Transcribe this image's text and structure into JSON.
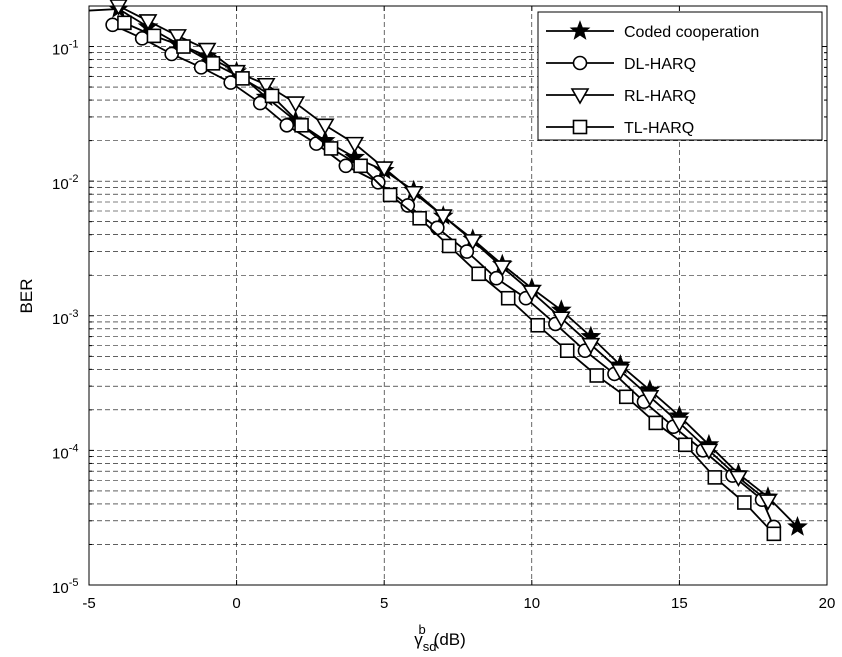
{
  "chart_data": {
    "type": "line",
    "xlabel": "γ_sd^b(dB)",
    "xlabel_parts": {
      "symbol": "γ",
      "sup": "b",
      "sub": "sd",
      "unit": "(dB)"
    },
    "ylabel": "BER",
    "xlim": [
      -5,
      20
    ],
    "ylim": [
      1e-05,
      0.2
    ],
    "yscale": "log",
    "grid": true,
    "grid_style": "dashed",
    "legend_position": "top-right",
    "x_ticks": [
      "-5",
      "0",
      "5",
      "10",
      "15",
      "20"
    ],
    "y_ticks": [
      {
        "base": "10",
        "exp": "-5"
      },
      {
        "base": "10",
        "exp": "-4"
      },
      {
        "base": "10",
        "exp": "-3"
      },
      {
        "base": "10",
        "exp": "-2"
      },
      {
        "base": "10",
        "exp": "-1"
      }
    ],
    "series": [
      {
        "name": "Coded cooperation",
        "marker": "star",
        "x": [
          -4.0,
          -3.0,
          -2.0,
          -1.0,
          0.0,
          1.0,
          2.0,
          3.0,
          4.0,
          5.0,
          6.0,
          7.0,
          8.0,
          9.0,
          10.0,
          11.0,
          12.0,
          13.0,
          14.0,
          15.0,
          16.0,
          17.0,
          18.0,
          19.0
        ],
        "y": [
          0.19,
          0.14,
          0.105,
          0.085,
          0.065,
          0.042,
          0.028,
          0.02,
          0.015,
          0.012,
          0.0085,
          0.0055,
          0.0037,
          0.0024,
          0.0016,
          0.0011,
          0.0007,
          0.00043,
          0.00028,
          0.00018,
          0.00011,
          6.7e-05,
          4.5e-05,
          2.7e-05
        ]
      },
      {
        "name": "DL-HARQ",
        "marker": "circle",
        "x": [
          -4.2,
          -3.2,
          -2.2,
          -1.2,
          -0.2,
          0.8,
          1.7,
          2.7,
          3.7,
          4.8,
          5.8,
          6.8,
          7.8,
          8.8,
          9.8,
          10.8,
          11.8,
          12.8,
          13.8,
          14.8,
          15.8,
          16.8,
          17.8,
          18.2
        ],
        "y": [
          0.145,
          0.115,
          0.088,
          0.07,
          0.054,
          0.038,
          0.026,
          0.019,
          0.013,
          0.0098,
          0.0066,
          0.0045,
          0.003,
          0.0019,
          0.00135,
          0.00087,
          0.00055,
          0.00037,
          0.00023,
          0.00015,
          0.0001,
          6.5e-05,
          4.3e-05,
          2.7e-05
        ]
      },
      {
        "name": "RL-HARQ",
        "marker": "triangle-down",
        "x": [
          -4.0,
          -3.0,
          -2.0,
          -1.0,
          0.0,
          1.0,
          2.0,
          3.0,
          4.0,
          5.0,
          6.0,
          7.0,
          8.0,
          9.0,
          10.0,
          11.0,
          12.0,
          13.0,
          14.0,
          15.0,
          16.0,
          17.0,
          18.0
        ],
        "y": [
          0.2,
          0.155,
          0.12,
          0.095,
          0.065,
          0.052,
          0.038,
          0.026,
          0.019,
          0.0125,
          0.0082,
          0.0055,
          0.0036,
          0.0023,
          0.0015,
          0.00096,
          0.00061,
          0.00039,
          0.00025,
          0.00016,
          0.0001,
          6.3e-05,
          4.2e-05
        ]
      },
      {
        "name": "TL-HARQ",
        "marker": "square",
        "x": [
          -3.8,
          -2.8,
          -1.8,
          -0.8,
          0.2,
          1.2,
          2.2,
          3.2,
          4.2,
          5.2,
          6.2,
          7.2,
          8.2,
          9.2,
          10.2,
          11.2,
          12.2,
          13.2,
          14.2,
          15.2,
          16.2,
          17.2,
          18.2
        ],
        "y": [
          0.15,
          0.12,
          0.1,
          0.075,
          0.058,
          0.043,
          0.026,
          0.0175,
          0.013,
          0.0079,
          0.0053,
          0.0033,
          0.00205,
          0.00135,
          0.00085,
          0.00055,
          0.00036,
          0.00025,
          0.00016,
          0.00011,
          6.3e-05,
          4.1e-05,
          2.4e-05
        ]
      }
    ]
  }
}
